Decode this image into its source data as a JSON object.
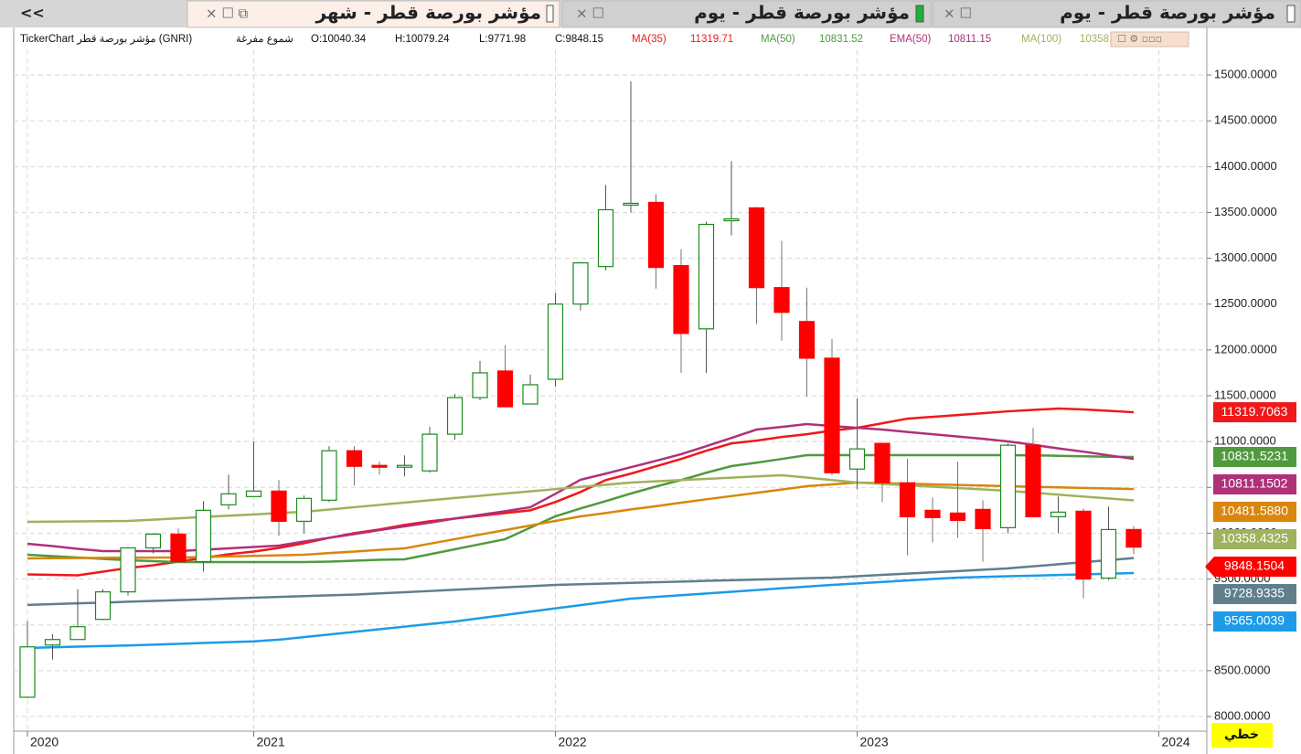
{
  "collapse_button": "<<",
  "tabs": [
    "مؤشر بورصة قطر - شهر",
    "مؤشر بورصة قطر - يوم",
    "مؤشر بورصة قطر - يوم"
  ],
  "info": {
    "symbol": "TickerChart مؤشر بورصة قطر (GNRI)",
    "style": "شموع مفرغة",
    "ohlc": [
      "O:10040.34",
      "H:10079.24",
      "L:9771.98",
      "C:9848.15"
    ]
  },
  "mode_button": "خطي",
  "chart_data": {
    "type": "candlestick",
    "categories": [
      "2020",
      null,
      null,
      null,
      null,
      null,
      null,
      null,
      null,
      "2021",
      null,
      null,
      null,
      null,
      null,
      null,
      null,
      null,
      null,
      null,
      null,
      "2022",
      null,
      null,
      null,
      null,
      null,
      null,
      null,
      null,
      null,
      null,
      null,
      "2023",
      null,
      null,
      null,
      null,
      null,
      null,
      null,
      null,
      null,
      null,
      null,
      "2024"
    ],
    "open": [
      8210,
      8780,
      8840,
      9060,
      9360,
      9840,
      9990,
      9690,
      10310,
      10400,
      10460,
      10130,
      10360,
      10900,
      10740,
      10720,
      10680,
      11080,
      11480,
      11770,
      11410,
      11680,
      12500,
      12910,
      13580,
      13610,
      12920,
      12230,
      13420,
      13550,
      12680,
      12310,
      11910,
      10700,
      10980,
      10550,
      10250,
      10220,
      10260,
      10060,
      10960,
      10180,
      10240,
      9510,
      10040.34,
      null
    ],
    "high": [
      9040,
      8900,
      9390,
      9390,
      9850,
      10000,
      10050,
      10350,
      10640,
      11000,
      10580,
      10410,
      10950,
      10950,
      10780,
      10850,
      11160,
      11520,
      11880,
      12050,
      11730,
      12620,
      12960,
      13800,
      14930,
      13700,
      13100,
      13400,
      14060,
      13560,
      13190,
      12680,
      12120,
      11470,
      10980,
      10810,
      10390,
      10780,
      10360,
      10980,
      11150,
      10400,
      10270,
      10290,
      10079.24,
      null
    ],
    "low": [
      8200,
      8620,
      8840,
      9050,
      9320,
      9780,
      9680,
      9580,
      10260,
      10400,
      9970,
      10000,
      10340,
      10520,
      10640,
      10620,
      10660,
      11020,
      11450,
      11380,
      11410,
      11600,
      12430,
      12870,
      13500,
      12670,
      11750,
      11750,
      13250,
      12280,
      12100,
      11490,
      10630,
      10480,
      10340,
      9760,
      9900,
      9950,
      9690,
      10000,
      10180,
      10000,
      9290,
      9490,
      9771.98,
      null
    ],
    "close": [
      8760,
      8840,
      8980,
      9360,
      9840,
      9990,
      9690,
      10250,
      10430,
      10460,
      10130,
      10380,
      10900,
      10730,
      10720,
      10740,
      11080,
      11480,
      11750,
      11380,
      11620,
      12500,
      12950,
      13530,
      13600,
      12900,
      12180,
      13370,
      13430,
      12680,
      12410,
      11910,
      10660,
      10920,
      10550,
      10180,
      10170,
      10140,
      10050,
      10960,
      10180,
      10230,
      9500,
      10040,
      9848.15,
      null
    ],
    "close_label": "9848.1504",
    "up_color": "#ffffff",
    "up_border": "#1a8a1a",
    "down_color": "#ff0000",
    "ylim": [
      7840,
      15270
    ],
    "yticks": [
      {
        "value": 8000,
        "label": "8000.0000"
      },
      {
        "value": 8500,
        "label": "8500.0000"
      },
      {
        "value": 9000,
        "label": "9000.0000"
      },
      {
        "value": 9500,
        "label": "9500.0000"
      },
      {
        "value": 10000,
        "label": "10000.0000"
      },
      {
        "value": 10500,
        "label": "10500.0000"
      },
      {
        "value": 11000,
        "label": "11000.0000"
      },
      {
        "value": 11500,
        "label": "11500.0000"
      },
      {
        "value": 12000,
        "label": "12000.0000"
      },
      {
        "value": 12500,
        "label": "12500.0000"
      },
      {
        "value": 13000,
        "label": "13000.0000"
      },
      {
        "value": 13500,
        "label": "13500.0000"
      },
      {
        "value": 14000,
        "label": "14000.0000"
      },
      {
        "value": 14500,
        "label": "14500.0000"
      },
      {
        "value": 15000,
        "label": "15000.0000"
      }
    ],
    "grid": true,
    "series": [
      {
        "name": "MA(35)",
        "color": "#f01818",
        "legend_value": "11319.71",
        "last_label": "11319.7063",
        "values": [
          9550,
          9545,
          9540,
          9580,
          9620,
          9650,
          9690,
          9730,
          9770,
          9800,
          9840,
          9890,
          9950,
          10000,
          10040,
          10090,
          10130,
          10160,
          10190,
          10220,
          10250,
          10340,
          10450,
          10580,
          10650,
          10730,
          10810,
          10900,
          10980,
          11010,
          11050,
          11080,
          11120,
          11150,
          11200,
          11250,
          11270,
          11290,
          11310,
          11330,
          11345,
          11360,
          11350,
          11335,
          11320,
          null
        ]
      },
      {
        "name": "MA(50)",
        "color": "#4f9a3f",
        "legend_value": "10831.52",
        "last_label": "10831.5231",
        "values": [
          9765,
          9750,
          9735,
          9720,
          9705,
          9695,
          9685,
          9685,
          9685,
          9685,
          9685,
          9685,
          9690,
          9700,
          9710,
          9715,
          9770,
          9825,
          9880,
          9935,
          10060,
          10184,
          10270,
          10350,
          10433,
          10510,
          10580,
          10660,
          10732,
          10770,
          10810,
          10852,
          10852,
          10852,
          10852,
          10852,
          10852,
          10852,
          10852,
          10852,
          10850,
          10845,
          10840,
          10835,
          10832,
          null
        ]
      },
      {
        "name": "EMA(50)",
        "color": "#b0307a",
        "legend_value": "10811.15",
        "last_label": "10811.1502",
        "values": [
          9885,
          9860,
          9830,
          9805,
          9805,
          9805,
          9805,
          9820,
          9835,
          9850,
          9865,
          9910,
          9950,
          9990,
          10034,
          10075,
          10115,
          10160,
          10200,
          10240,
          10284,
          10430,
          10583,
          10650,
          10720,
          10790,
          10862,
          10950,
          11040,
          11131,
          11160,
          11191,
          11170,
          11150,
          11131,
          11105,
          11080,
          11055,
          11030,
          11002,
          10965,
          10925,
          10890,
          10850,
          10811,
          null
        ]
      },
      {
        "color": "#d9860c",
        "last_label": "10481.5880",
        "values": [
          9725,
          9727,
          9729,
          9731,
          9733,
          9734,
          9735,
          9740,
          9746,
          9752,
          9758,
          9765,
          9783,
          9800,
          9818,
          9835,
          9885,
          9935,
          9985,
          10034,
          10084,
          10134,
          10184,
          10220,
          10260,
          10295,
          10333,
          10370,
          10405,
          10440,
          10477,
          10513,
          10533,
          10553,
          10546,
          10540,
          10533,
          10526,
          10520,
          10513,
          10507,
          10500,
          10494,
          10488,
          10482,
          null
        ]
      },
      {
        "name": "MA(100)",
        "color": "#9fb25c",
        "legend_value": "10358.43",
        "last_label": "10358.4325",
        "values": [
          10124,
          10126,
          10129,
          10131,
          10134,
          10148,
          10162,
          10177,
          10191,
          10205,
          10220,
          10234,
          10259,
          10284,
          10309,
          10334,
          10359,
          10384,
          10408,
          10433,
          10457,
          10481,
          10505,
          10529,
          10553,
          10566,
          10580,
          10593,
          10606,
          10620,
          10633,
          10607,
          10580,
          10553,
          10538,
          10523,
          10508,
          10493,
          10478,
          10463,
          10442,
          10421,
          10400,
          10379,
          10358,
          null
        ]
      },
      {
        "color": "#5f7f8c",
        "last_label": "9728.9335",
        "values": [
          9217,
          9226,
          9235,
          9243,
          9252,
          9261,
          9270,
          9278,
          9287,
          9296,
          9305,
          9313,
          9322,
          9330,
          9343,
          9356,
          9369,
          9383,
          9396,
          9409,
          9422,
          9436,
          9443,
          9451,
          9458,
          9465,
          9472,
          9480,
          9487,
          9494,
          9501,
          9509,
          9516,
          9530,
          9545,
          9559,
          9573,
          9587,
          9602,
          9616,
          9639,
          9661,
          9684,
          9706,
          9729,
          null
        ]
      },
      {
        "color": "#1c9be8",
        "last_label": "9565.0039",
        "values": [
          8748,
          8755,
          8762,
          8769,
          8775,
          8784,
          8793,
          8802,
          8811,
          8820,
          8838,
          8866,
          8895,
          8923,
          8952,
          8980,
          9009,
          9037,
          9073,
          9108,
          9144,
          9180,
          9215,
          9250,
          9286,
          9305,
          9324,
          9342,
          9361,
          9380,
          9399,
          9417,
          9436,
          9452,
          9468,
          9484,
          9500,
          9516,
          9523,
          9530,
          9537,
          9544,
          9551,
          9558,
          9565,
          null
        ]
      }
    ]
  }
}
